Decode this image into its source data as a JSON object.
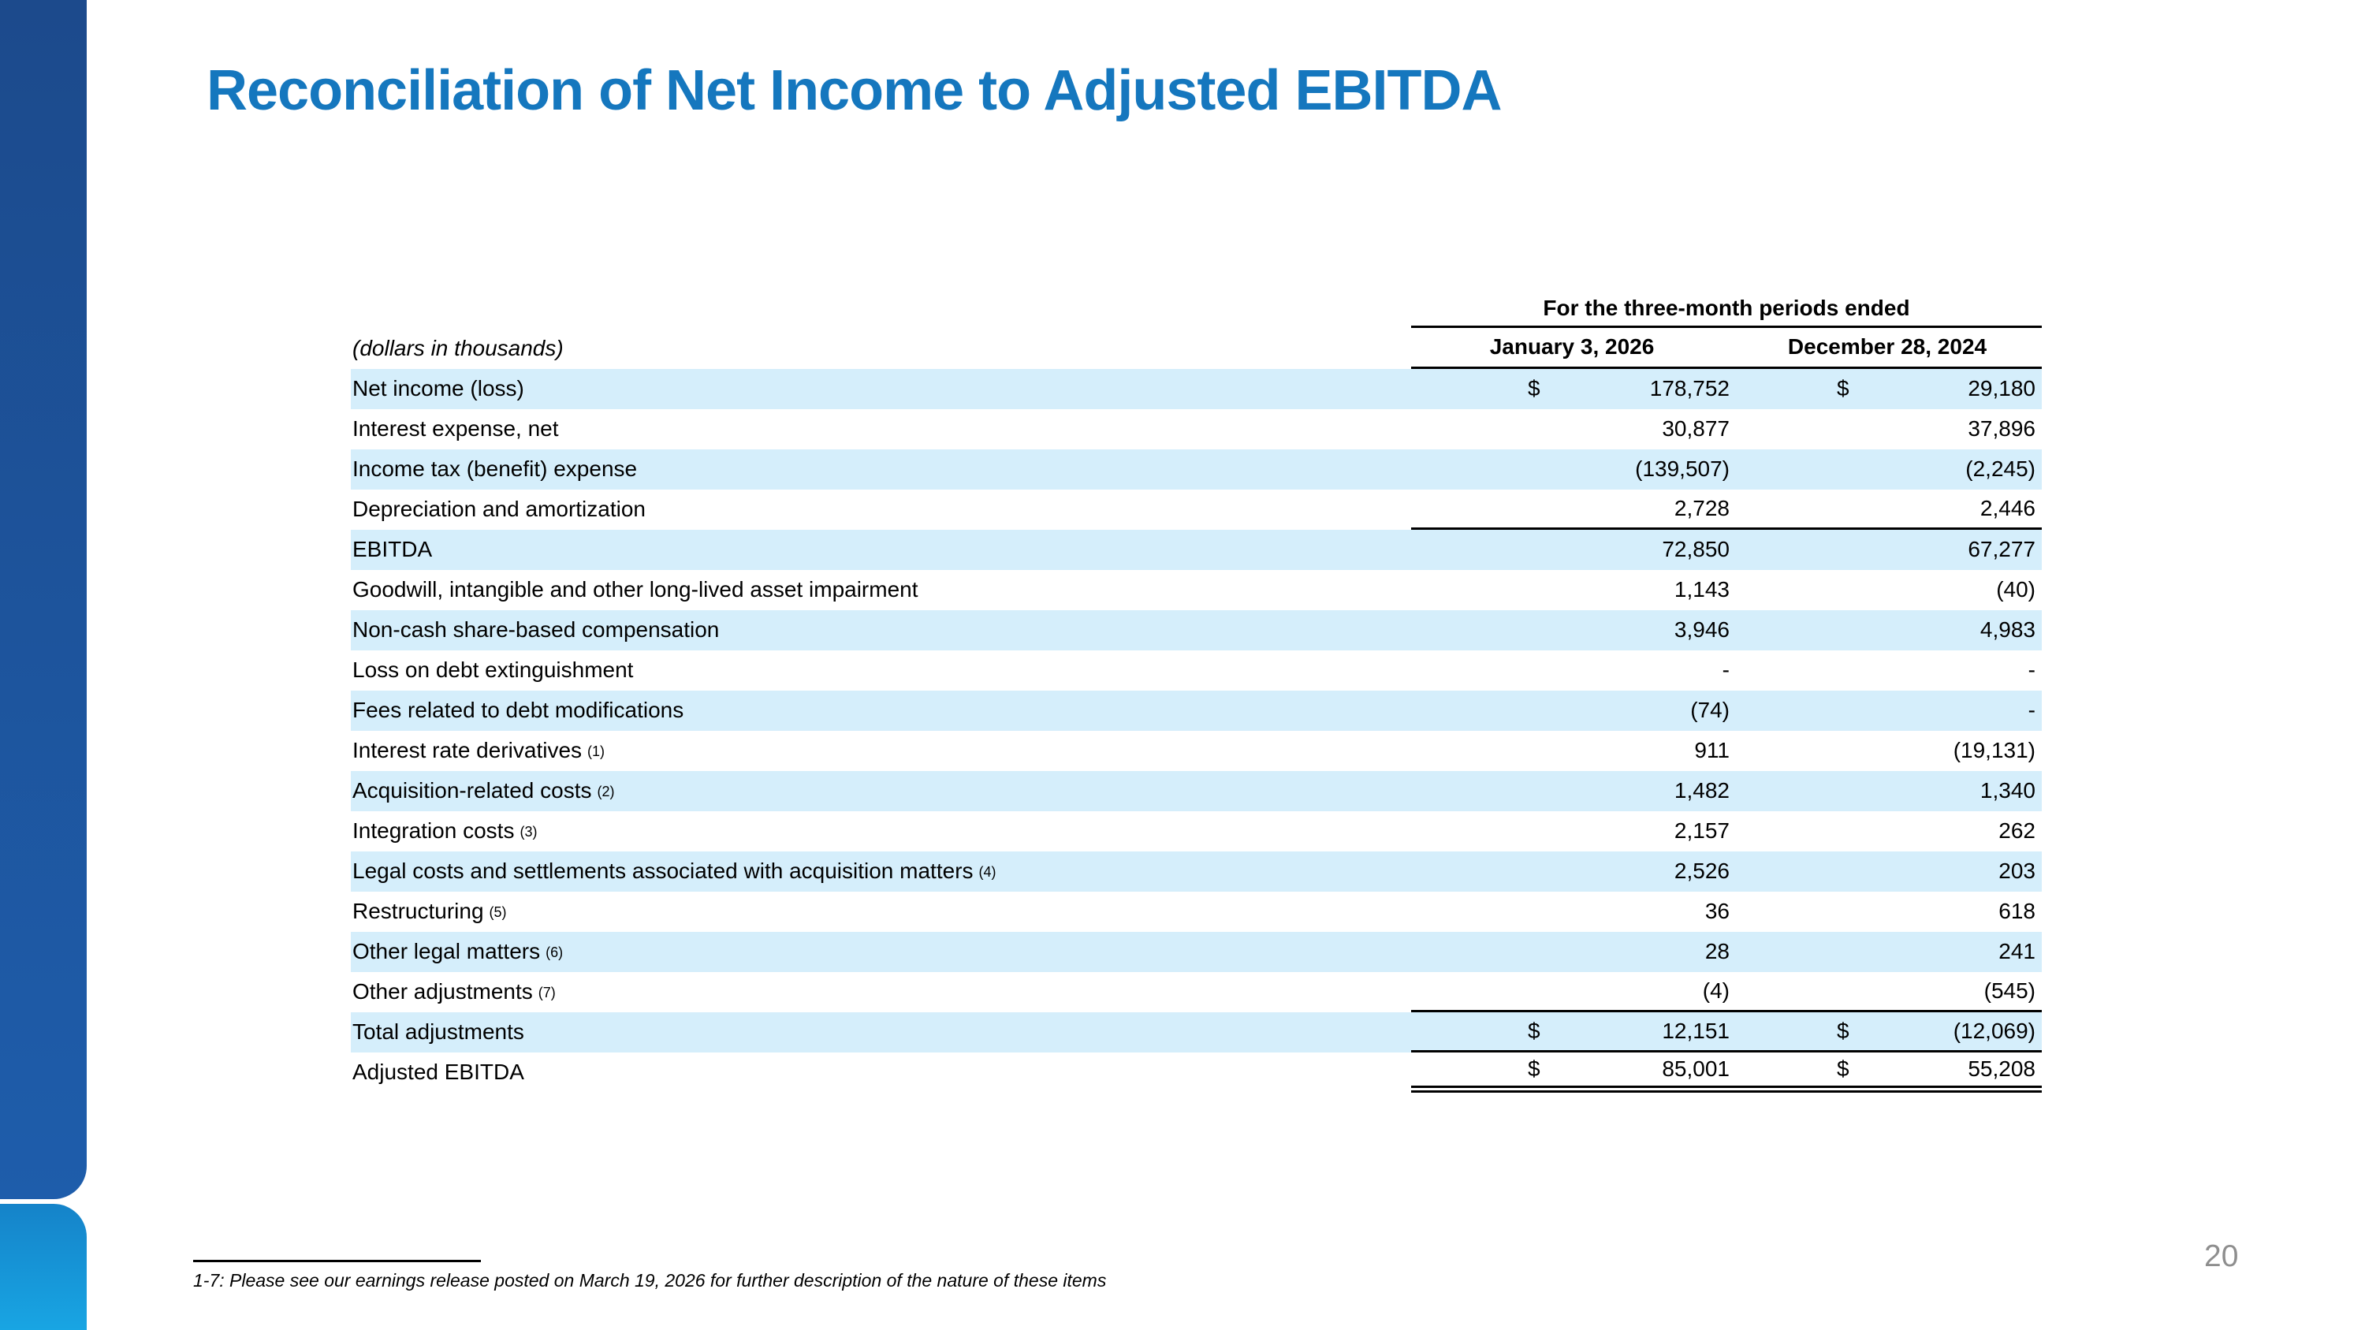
{
  "slide": {
    "title": "Reconciliation of Net Income to Adjusted EBITDA",
    "page_number": "20",
    "footnote_text": "1-7: Please see our earnings release posted on March 19, 2026 for further description of the nature of these items"
  },
  "table": {
    "units_label": "(dollars in thousands)",
    "period_header": "For the three-month periods ended",
    "columns": [
      "January 3, 2026",
      "December 28, 2024"
    ],
    "rows": [
      {
        "label": "Net income (loss)",
        "sup": "",
        "dollar": true,
        "shaded": true,
        "rule_below": "",
        "values": [
          "178,752",
          "29,180"
        ]
      },
      {
        "label": "Interest expense, net",
        "sup": "",
        "dollar": false,
        "shaded": false,
        "rule_below": "",
        "values": [
          "30,877",
          "37,896"
        ]
      },
      {
        "label": "Income tax (benefit) expense",
        "sup": "",
        "dollar": false,
        "shaded": true,
        "rule_below": "",
        "values": [
          "(139,507)",
          "(2,245)"
        ]
      },
      {
        "label": "Depreciation and amortization",
        "sup": "",
        "dollar": false,
        "shaded": false,
        "rule_below": "single",
        "values": [
          "2,728",
          "2,446"
        ]
      },
      {
        "label": "EBITDA",
        "sup": "",
        "dollar": false,
        "shaded": true,
        "rule_below": "",
        "values": [
          "72,850",
          "67,277"
        ]
      },
      {
        "label": "Goodwill, intangible and other long-lived asset impairment",
        "sup": "",
        "dollar": false,
        "shaded": false,
        "rule_below": "",
        "values": [
          "1,143",
          "(40)"
        ]
      },
      {
        "label": "Non-cash share-based compensation",
        "sup": "",
        "dollar": false,
        "shaded": true,
        "rule_below": "",
        "values": [
          "3,946",
          "4,983"
        ]
      },
      {
        "label": "Loss on debt extinguishment",
        "sup": "",
        "dollar": false,
        "shaded": false,
        "rule_below": "",
        "values": [
          "-",
          "-"
        ]
      },
      {
        "label": "Fees related to debt modifications",
        "sup": "",
        "dollar": false,
        "shaded": true,
        "rule_below": "",
        "values": [
          "(74)",
          "-"
        ]
      },
      {
        "label": "Interest rate derivatives",
        "sup": "(1)",
        "dollar": false,
        "shaded": false,
        "rule_below": "",
        "values": [
          "911",
          "(19,131)"
        ]
      },
      {
        "label": "Acquisition-related costs",
        "sup": "(2)",
        "dollar": false,
        "shaded": true,
        "rule_below": "",
        "values": [
          "1,482",
          "1,340"
        ]
      },
      {
        "label": "Integration costs",
        "sup": "(3)",
        "dollar": false,
        "shaded": false,
        "rule_below": "",
        "values": [
          "2,157",
          "262"
        ]
      },
      {
        "label": "Legal costs and settlements associated with acquisition matters",
        "sup": "(4)",
        "dollar": false,
        "shaded": true,
        "rule_below": "",
        "values": [
          "2,526",
          "203"
        ]
      },
      {
        "label": "Restructuring",
        "sup": "(5)",
        "dollar": false,
        "shaded": false,
        "rule_below": "",
        "values": [
          "36",
          "618"
        ]
      },
      {
        "label": "Other legal matters",
        "sup": "(6)",
        "dollar": false,
        "shaded": true,
        "rule_below": "",
        "values": [
          "28",
          "241"
        ]
      },
      {
        "label": "Other adjustments",
        "sup": "(7)",
        "dollar": false,
        "shaded": false,
        "rule_below": "single",
        "values": [
          "(4)",
          "(545)"
        ]
      },
      {
        "label": "Total adjustments",
        "sup": "",
        "dollar": true,
        "shaded": true,
        "rule_below": "single",
        "values": [
          "12,151",
          "(12,069)"
        ]
      },
      {
        "label": "Adjusted EBITDA",
        "sup": "",
        "dollar": true,
        "shaded": false,
        "rule_below": "double",
        "values": [
          "85,001",
          "55,208"
        ]
      }
    ]
  },
  "colors": {
    "title_blue": "#1577be",
    "row_band_blue": "#d5eefb",
    "sidebar_dark_top": "#1c4a8c",
    "sidebar_dark_bottom": "#1e5dab",
    "sidebar_light_top": "#1583c9",
    "sidebar_light_bottom": "#18a5e3",
    "page_number_gray": "#8e8e8e",
    "rule_black": "#000000"
  }
}
